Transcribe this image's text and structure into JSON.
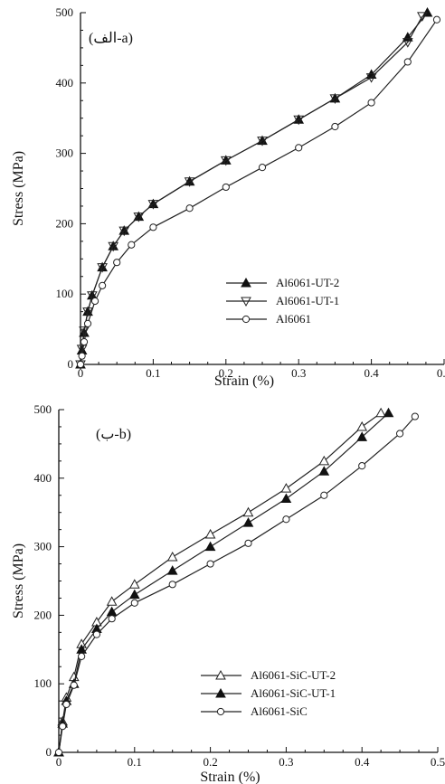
{
  "chart_data": [
    {
      "type": "line",
      "panel_label": "(الف-a)",
      "xlabel": "Strain (%)",
      "ylabel": "Stress (MPa)",
      "xlim": [
        0,
        0.5
      ],
      "ylim": [
        0,
        500
      ],
      "xticks": [
        "0",
        "0.1",
        "0.2",
        "0.3",
        "0.4",
        "0.5"
      ],
      "yticks": [
        "0",
        "100",
        "200",
        "300",
        "400",
        "500"
      ],
      "legend_position": "lower-right",
      "series": [
        {
          "name": "Al6061-UT-2",
          "marker": "triangle-up-filled",
          "x": [
            0,
            0.002,
            0.005,
            0.01,
            0.016,
            0.03,
            0.045,
            0.06,
            0.08,
            0.1,
            0.15,
            0.2,
            0.25,
            0.3,
            0.35,
            0.4,
            0.45,
            0.477
          ],
          "y": [
            0,
            20,
            45,
            75,
            98,
            138,
            168,
            190,
            210,
            228,
            260,
            290,
            318,
            348,
            378,
            412,
            465,
            500
          ]
        },
        {
          "name": "Al6061-UT-1",
          "marker": "triangle-down-open",
          "x": [
            0,
            0.002,
            0.005,
            0.01,
            0.016,
            0.03,
            0.045,
            0.06,
            0.08,
            0.1,
            0.15,
            0.2,
            0.25,
            0.3,
            0.35,
            0.4,
            0.45,
            0.47
          ],
          "y": [
            0,
            22,
            48,
            75,
            98,
            138,
            168,
            190,
            210,
            228,
            260,
            290,
            318,
            348,
            378,
            408,
            458,
            495
          ]
        },
        {
          "name": "Al6061",
          "marker": "circle-open",
          "x": [
            0,
            0.002,
            0.005,
            0.01,
            0.02,
            0.03,
            0.05,
            0.07,
            0.1,
            0.15,
            0.2,
            0.25,
            0.3,
            0.35,
            0.4,
            0.45,
            0.49
          ],
          "y": [
            0,
            12,
            32,
            58,
            90,
            112,
            145,
            170,
            195,
            222,
            252,
            280,
            308,
            338,
            372,
            430,
            490
          ]
        }
      ]
    },
    {
      "type": "line",
      "panel_label": "(ب-b)",
      "xlabel": "Strain (%)",
      "ylabel": "Stress (MPa)",
      "xlim": [
        0,
        0.5
      ],
      "ylim": [
        0,
        500
      ],
      "xticks": [
        "0",
        "0.1",
        "0.2",
        "0.3",
        "0.4",
        "0.5"
      ],
      "yticks": [
        "0",
        "100",
        "200",
        "300",
        "400",
        "500"
      ],
      "legend_position": "lower-right",
      "series": [
        {
          "name": "Al6061-SiC-UT-2",
          "marker": "triangle-up-open",
          "x": [
            0,
            0.005,
            0.01,
            0.02,
            0.03,
            0.05,
            0.07,
            0.1,
            0.15,
            0.2,
            0.25,
            0.3,
            0.35,
            0.4,
            0.425
          ],
          "y": [
            0,
            45,
            80,
            110,
            158,
            190,
            220,
            245,
            285,
            318,
            350,
            385,
            425,
            475,
            495
          ]
        },
        {
          "name": "Al6061-SiC-UT-1",
          "marker": "triangle-up-filled",
          "x": [
            0,
            0.005,
            0.01,
            0.02,
            0.03,
            0.05,
            0.07,
            0.1,
            0.15,
            0.2,
            0.25,
            0.3,
            0.35,
            0.4,
            0.435
          ],
          "y": [
            0,
            42,
            75,
            100,
            150,
            180,
            205,
            230,
            265,
            300,
            335,
            370,
            410,
            460,
            495
          ]
        },
        {
          "name": "Al6061-SiC",
          "marker": "circle-open",
          "x": [
            0,
            0.005,
            0.01,
            0.02,
            0.03,
            0.05,
            0.07,
            0.1,
            0.15,
            0.2,
            0.25,
            0.3,
            0.35,
            0.4,
            0.45,
            0.47
          ],
          "y": [
            0,
            38,
            70,
            98,
            140,
            172,
            195,
            218,
            245,
            275,
            305,
            340,
            375,
            418,
            465,
            490
          ]
        }
      ]
    }
  ]
}
